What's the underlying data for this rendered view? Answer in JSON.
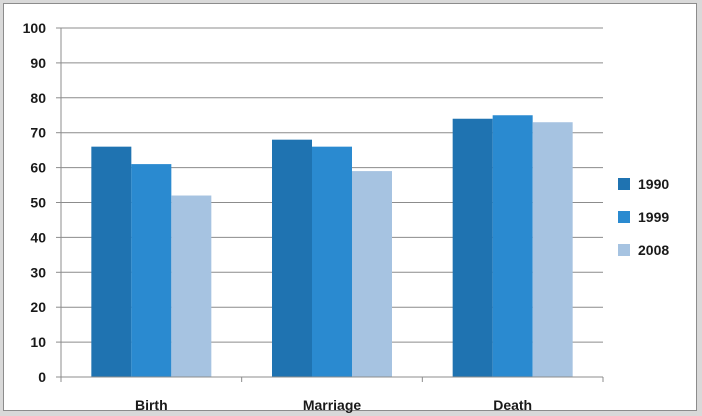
{
  "chart_data": {
    "type": "bar",
    "title": "",
    "xlabel": "",
    "ylabel": "",
    "categories": [
      "Birth",
      "Marriage",
      "Death"
    ],
    "series": [
      {
        "name": "1990",
        "values": [
          66,
          68,
          74
        ],
        "color": "#1f73b1"
      },
      {
        "name": "1999",
        "values": [
          61,
          66,
          75
        ],
        "color": "#2a8ad0"
      },
      {
        "name": "2008",
        "values": [
          52,
          59,
          73
        ],
        "color": "#a6c3e1"
      }
    ],
    "ylim": [
      0,
      100
    ],
    "yticks": [
      0,
      10,
      20,
      30,
      40,
      50,
      60,
      70,
      80,
      90,
      100
    ],
    "grid": true,
    "legend_position": "right"
  }
}
